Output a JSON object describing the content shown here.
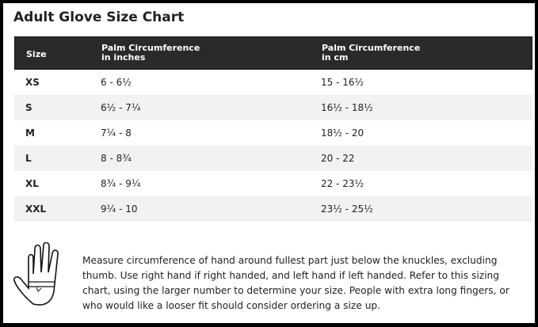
{
  "title": "Adult Glove Size Chart",
  "headers": {
    "size": "Size",
    "inches_1": "Palm Circumference",
    "inches_2": "in inches",
    "cm_1": "Palm Circumference",
    "cm_2": "in cm"
  },
  "rows": [
    {
      "size": "XS",
      "inches": "6 - 6½",
      "cm": "15 - 16½"
    },
    {
      "size": "S",
      "inches": "6½ - 7¼",
      "cm": "16½ - 18½"
    },
    {
      "size": "M",
      "inches": "7¼ - 8",
      "cm": "18½ - 20"
    },
    {
      "size": "L",
      "inches": "8 - 8¾",
      "cm": "20 - 22"
    },
    {
      "size": "XL",
      "inches": "8¾ - 9¼",
      "cm": "22 - 23½"
    },
    {
      "size": "XXL",
      "inches": "9¼ - 10",
      "cm": "23½ - 25½"
    }
  ],
  "note": "Measure circumference of hand around fullest part just below the knuckles, excluding thumb. Use right hand if right handed, and left hand if left handed. Refer to this sizing chart, using the larger number to determine your size. People with extra long fingers, or who would like a looser fit should consider ordering a size up.",
  "icons": {
    "hand": "hand-measure-icon"
  }
}
